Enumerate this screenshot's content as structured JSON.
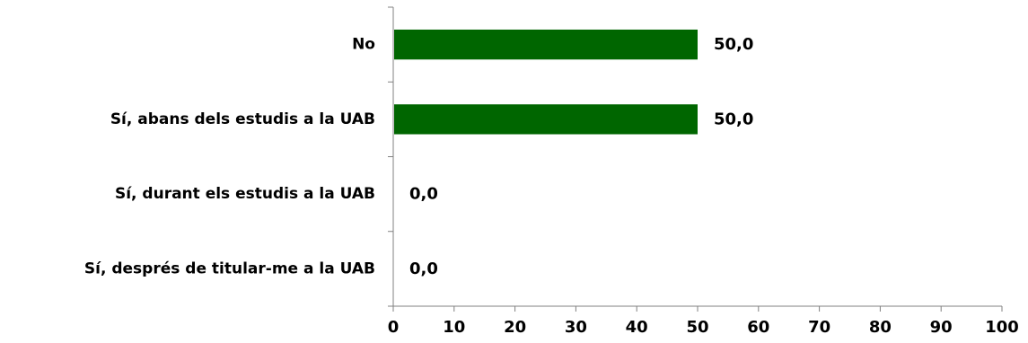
{
  "chart_data": {
    "type": "bar",
    "orientation": "horizontal",
    "categories": [
      "No",
      "Sí, abans dels estudis a la UAB",
      "Sí, durant els estudis a la UAB",
      "Sí, després de titular-me a la UAB"
    ],
    "values": [
      50.0,
      50.0,
      0.0,
      0.0
    ],
    "value_labels": [
      "50,0",
      "50,0",
      "0,0",
      "0,0"
    ],
    "xlim": [
      0,
      100
    ],
    "xticks": [
      0,
      10,
      20,
      30,
      40,
      50,
      60,
      70,
      80,
      90,
      100
    ],
    "xtick_labels": [
      "0",
      "10",
      "20",
      "30",
      "40",
      "50",
      "60",
      "70",
      "80",
      "90",
      "100"
    ],
    "bar_color": "#006600",
    "grid": false,
    "title": "",
    "xlabel": "",
    "ylabel": ""
  }
}
